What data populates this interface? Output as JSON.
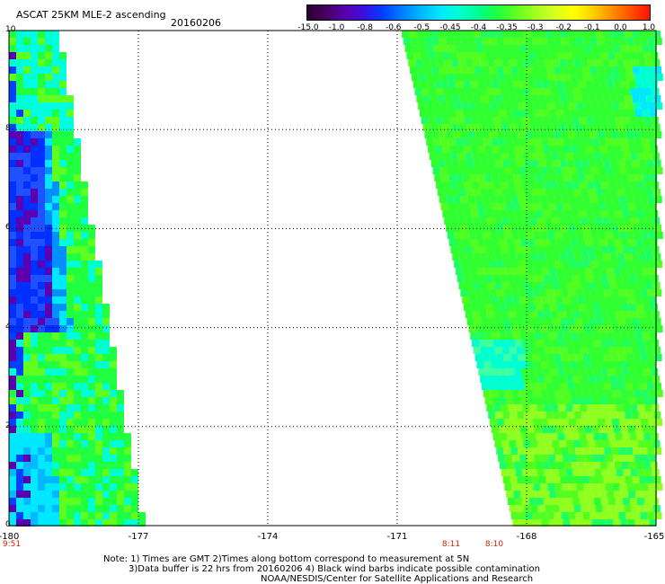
{
  "header": {
    "title": "ASCAT 25KM MLE-2 ascending",
    "date": "20160206"
  },
  "colorbar": {
    "colors": [
      "#2a0030",
      "#480060",
      "#5a00b0",
      "#3a10e0",
      "#0040ff",
      "#0080ff",
      "#00b8ff",
      "#00e8ff",
      "#00ffd0",
      "#00ff90",
      "#20ff40",
      "#60ff20",
      "#a0ff20",
      "#d8ff20",
      "#ffff00",
      "#ffd000",
      "#ff9000",
      "#ff5000",
      "#ff1000"
    ],
    "ticks": [
      "-15.0",
      "-1.0",
      "-0.8",
      "-0.6",
      "-0.5",
      "-0.45",
      "-0.4",
      "-0.35",
      "-0.3",
      "-0.2",
      "-0.1",
      "0.0",
      "1.0"
    ]
  },
  "axes": {
    "x_ticks": [
      "-180",
      "-177",
      "-174",
      "-171",
      "-168",
      "-165"
    ],
    "x_values": [
      -180,
      -177,
      -174,
      -171,
      -168,
      -165
    ],
    "y_ticks": [
      "10",
      "8",
      "6",
      "4",
      "2",
      "0"
    ],
    "y_values": [
      10,
      8,
      6,
      4,
      2,
      0
    ]
  },
  "times": [
    "9:51",
    "8:11",
    "8:10"
  ],
  "notes": {
    "line1": "Note: 1) Times are GMT 2)Times along bottom correspond to measurement at 5N",
    "line2": "3)Data buffer is 22 hrs from 20160206 4) Black wind barbs indicate possible contamination",
    "line3": "NOAA/NESDIS/Center for Satellite Applications and Research"
  }
}
